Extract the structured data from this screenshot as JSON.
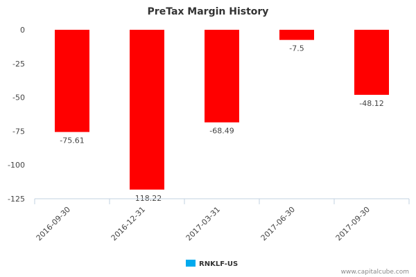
{
  "chart_data": {
    "type": "bar",
    "title": "PreTax Margin History",
    "categories": [
      "2016-09-30",
      "2016-12-31",
      "2017-03-31",
      "2017-06-30",
      "2017-09-30"
    ],
    "series": [
      {
        "name": "RNKLF-US",
        "values": [
          -75.61,
          -118.22,
          -68.49,
          -7.5,
          -48.12
        ],
        "color": "#ff0000",
        "legend_color": "#00aaee"
      }
    ],
    "data_labels": [
      "-75.61",
      "-118.22",
      "-68.49",
      "-7.5",
      "-48.12"
    ],
    "y_ticks": [
      0,
      -25,
      -50,
      -75,
      -100,
      -125
    ],
    "ylim": [
      -125,
      0
    ],
    "xlabel": "",
    "ylabel": "",
    "legend_position": "bottom-center",
    "grid": false
  },
  "credit": "www.capitalcube.com"
}
